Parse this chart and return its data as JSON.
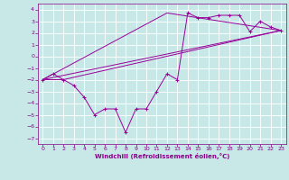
{
  "xlabel": "Windchill (Refroidissement éolien,°C)",
  "bg_color": "#c8e8e8",
  "grid_color": "#ffffff",
  "line_color": "#990099",
  "xlim": [
    -0.5,
    23.5
  ],
  "ylim": [
    -7.5,
    4.5
  ],
  "yticks": [
    -7,
    -6,
    -5,
    -4,
    -3,
    -2,
    -1,
    0,
    1,
    2,
    3,
    4
  ],
  "xticks": [
    0,
    1,
    2,
    3,
    4,
    5,
    6,
    7,
    8,
    9,
    10,
    11,
    12,
    13,
    14,
    15,
    16,
    17,
    18,
    19,
    20,
    21,
    22,
    23
  ],
  "line1_x": [
    0,
    1,
    2,
    3,
    4,
    5,
    6,
    7,
    8,
    9,
    10,
    11,
    12,
    13,
    14,
    15,
    16,
    17,
    18,
    19,
    20,
    21,
    22,
    23
  ],
  "line1_y": [
    -2.0,
    -1.5,
    -2.0,
    -2.5,
    -3.5,
    -5.0,
    -4.5,
    -4.5,
    -6.5,
    -4.5,
    -4.5,
    -3.0,
    -1.5,
    -2.0,
    3.7,
    3.3,
    3.3,
    3.5,
    3.5,
    3.5,
    2.1,
    3.0,
    2.5,
    2.2
  ],
  "line2_x": [
    0,
    23
  ],
  "line2_y": [
    -2.0,
    2.2
  ],
  "line3_x": [
    0,
    12,
    23
  ],
  "line3_y": [
    -2.0,
    3.7,
    2.2
  ],
  "line4_x": [
    0,
    2,
    23
  ],
  "line4_y": [
    -2.0,
    -2.0,
    2.2
  ]
}
